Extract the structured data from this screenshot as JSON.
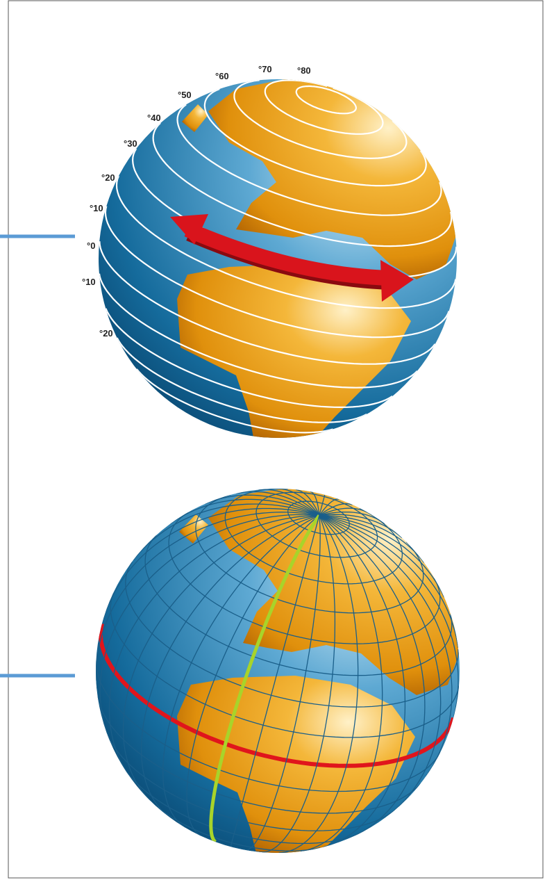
{
  "latitude_labels": [
    "°80",
    "°70",
    "°60",
    "°50",
    "°40",
    "°30",
    "°20",
    "°10",
    "°0",
    "°10",
    "°20"
  ]
}
